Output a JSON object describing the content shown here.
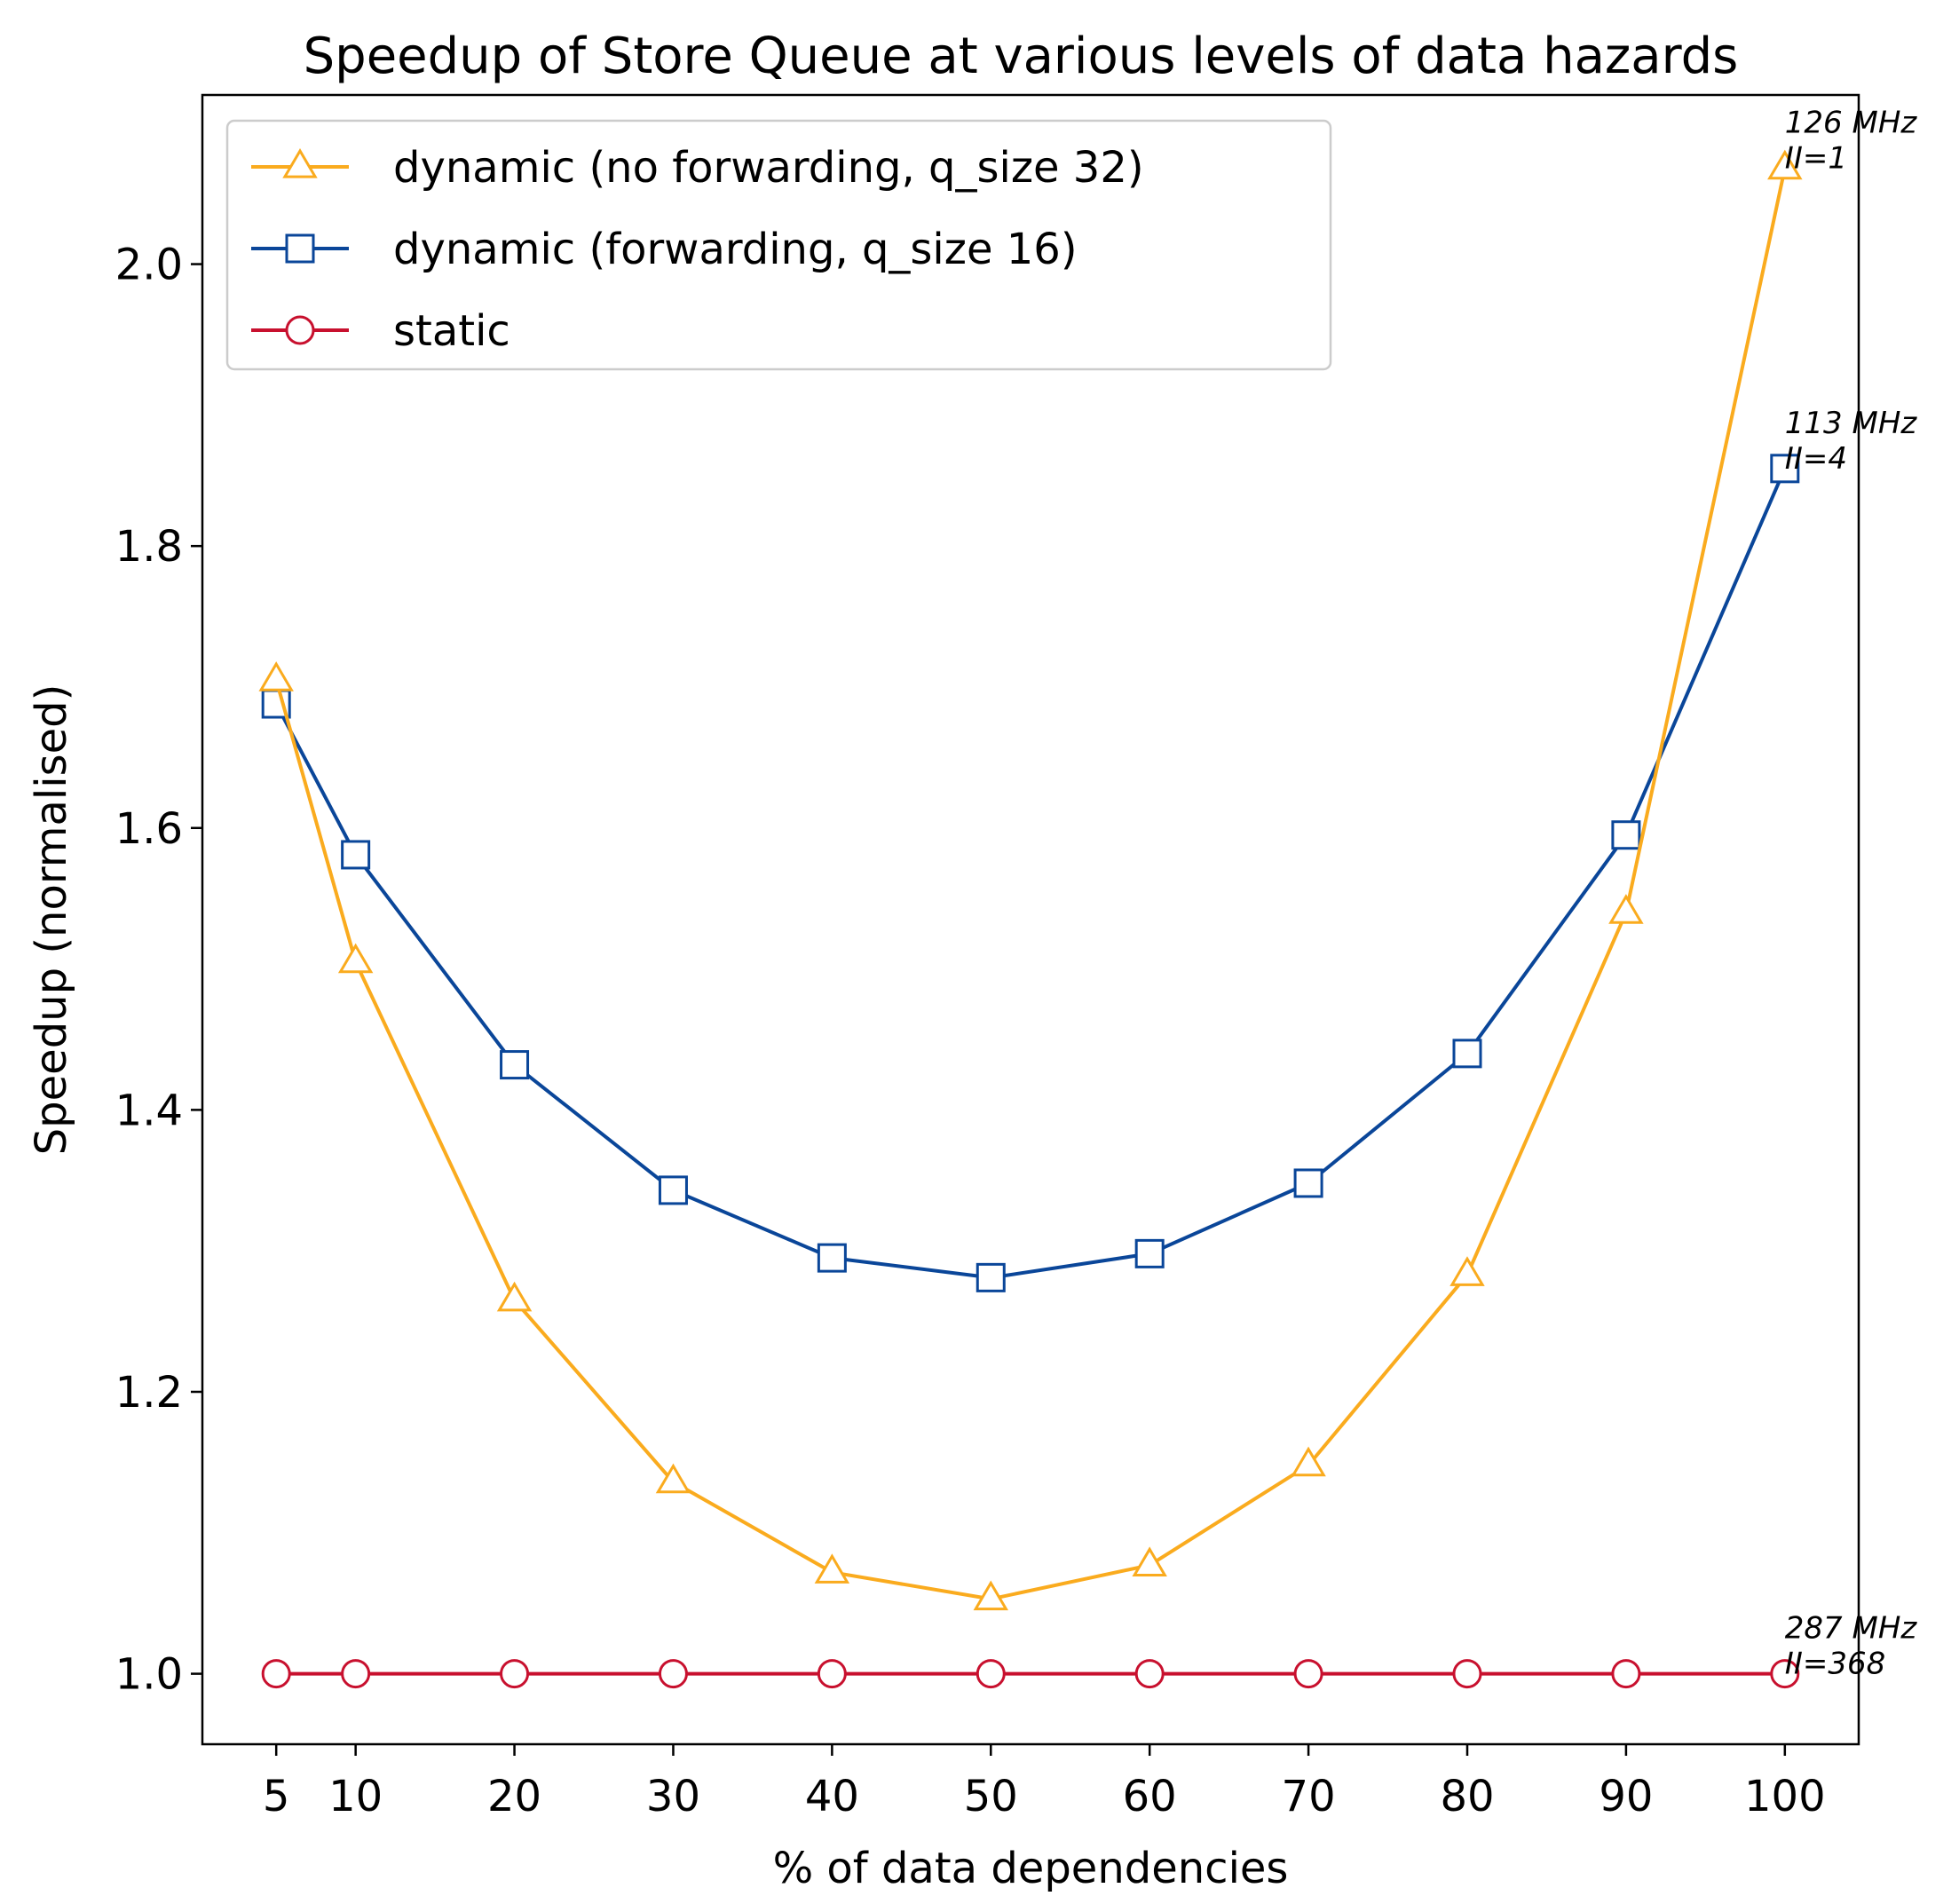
{
  "chart_data": {
    "type": "line",
    "title": "Speedup of Store Queue at various levels of data hazards",
    "xlabel": "% of data dependencies",
    "ylabel": "Speedup (normalised)",
    "x": [
      5,
      10,
      20,
      30,
      40,
      50,
      60,
      70,
      80,
      90,
      100
    ],
    "xticks": [
      5,
      10,
      20,
      30,
      40,
      50,
      60,
      70,
      80,
      90,
      100
    ],
    "yticks": [
      1.0,
      1.2,
      1.4,
      1.6,
      1.8,
      2.0
    ],
    "xlim": [
      0.35,
      104.65
    ],
    "ylim": [
      0.95,
      2.12
    ],
    "grid": false,
    "legend_position": "upper-left",
    "series": [
      {
        "name": "dynamic (no forwarding, q_size 32)",
        "color": "#FAAB1E",
        "marker": "triangle",
        "values": [
          1.705,
          1.505,
          1.265,
          1.136,
          1.072,
          1.053,
          1.077,
          1.148,
          1.283,
          1.54,
          2.068
        ]
      },
      {
        "name": "dynamic (forwarding, q_size 16)",
        "color": "#0A4699",
        "marker": "square",
        "values": [
          1.688,
          1.581,
          1.432,
          1.343,
          1.295,
          1.281,
          1.298,
          1.348,
          1.44,
          1.595,
          1.855
        ]
      },
      {
        "name": "static",
        "color": "#C8102E",
        "marker": "circle",
        "values": [
          1.0,
          1.0,
          1.0,
          1.0,
          1.0,
          1.0,
          1.0,
          1.0,
          1.0,
          1.0,
          1.0
        ]
      }
    ],
    "annotations": [
      {
        "series": 0,
        "x": 100,
        "freq": "126 MHz",
        "ii": "II=1"
      },
      {
        "series": 1,
        "x": 100,
        "freq": "113 MHz",
        "ii": "II=4"
      },
      {
        "series": 2,
        "x": 100,
        "freq": "287 MHz",
        "ii": "II=368"
      }
    ]
  }
}
